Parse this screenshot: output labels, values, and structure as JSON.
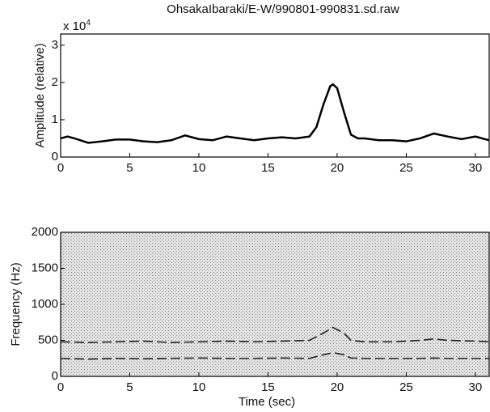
{
  "chart_data": [
    {
      "type": "line",
      "title": "OhsakaIbaraki/E-W/990801-990831.sd.raw",
      "ylabel": "Amplitude (relative)",
      "exponent": {
        "base": "x 10",
        "power": "4"
      },
      "x": [
        0,
        0.5,
        1,
        2,
        3,
        4,
        5,
        6,
        7,
        8,
        9,
        10,
        11,
        12,
        13,
        14,
        15,
        16,
        17,
        18,
        18.5,
        19,
        19.5,
        19.7,
        20,
        20.5,
        21,
        21.5,
        22,
        23,
        24,
        25,
        26,
        27,
        28,
        29,
        30,
        31
      ],
      "series": [
        {
          "color": "#000000",
          "values": [
            0.5,
            0.55,
            0.5,
            0.38,
            0.42,
            0.47,
            0.47,
            0.42,
            0.4,
            0.45,
            0.58,
            0.48,
            0.45,
            0.55,
            0.5,
            0.45,
            0.5,
            0.53,
            0.5,
            0.55,
            0.8,
            1.4,
            1.9,
            1.95,
            1.85,
            1.2,
            0.6,
            0.5,
            0.5,
            0.45,
            0.45,
            0.42,
            0.5,
            0.63,
            0.55,
            0.48,
            0.55,
            0.45
          ]
        }
      ],
      "xlim": [
        0,
        31
      ],
      "xticks": [
        0,
        5,
        10,
        15,
        20,
        25,
        30
      ],
      "ylim": [
        0,
        3.3
      ],
      "yticks": [
        0,
        1,
        2,
        3
      ]
    },
    {
      "type": "spectrogram",
      "xlabel": "Time (sec)",
      "ylabel": "Frequency (Hz)",
      "x": [
        0,
        2,
        4,
        6,
        8,
        10,
        12,
        14,
        16,
        18,
        19,
        19.7,
        20.5,
        21,
        22,
        24,
        26,
        27,
        28,
        30,
        31
      ],
      "series": [
        {
          "color": "#222222",
          "values": [
            250,
            240,
            250,
            245,
            250,
            255,
            250,
            250,
            255,
            250,
            300,
            330,
            300,
            255,
            250,
            250,
            250,
            255,
            250,
            250,
            250
          ]
        },
        {
          "color": "#222222",
          "values": [
            480,
            470,
            480,
            490,
            470,
            480,
            490,
            480,
            490,
            500,
            600,
            680,
            600,
            500,
            480,
            480,
            500,
            520,
            500,
            490,
            480
          ]
        }
      ],
      "xlim": [
        0,
        31
      ],
      "xticks": [
        0,
        5,
        10,
        15,
        20,
        25,
        30
      ],
      "ylim": [
        0,
        2000
      ],
      "yticks": [
        0,
        500,
        1000,
        1500,
        2000
      ]
    }
  ]
}
